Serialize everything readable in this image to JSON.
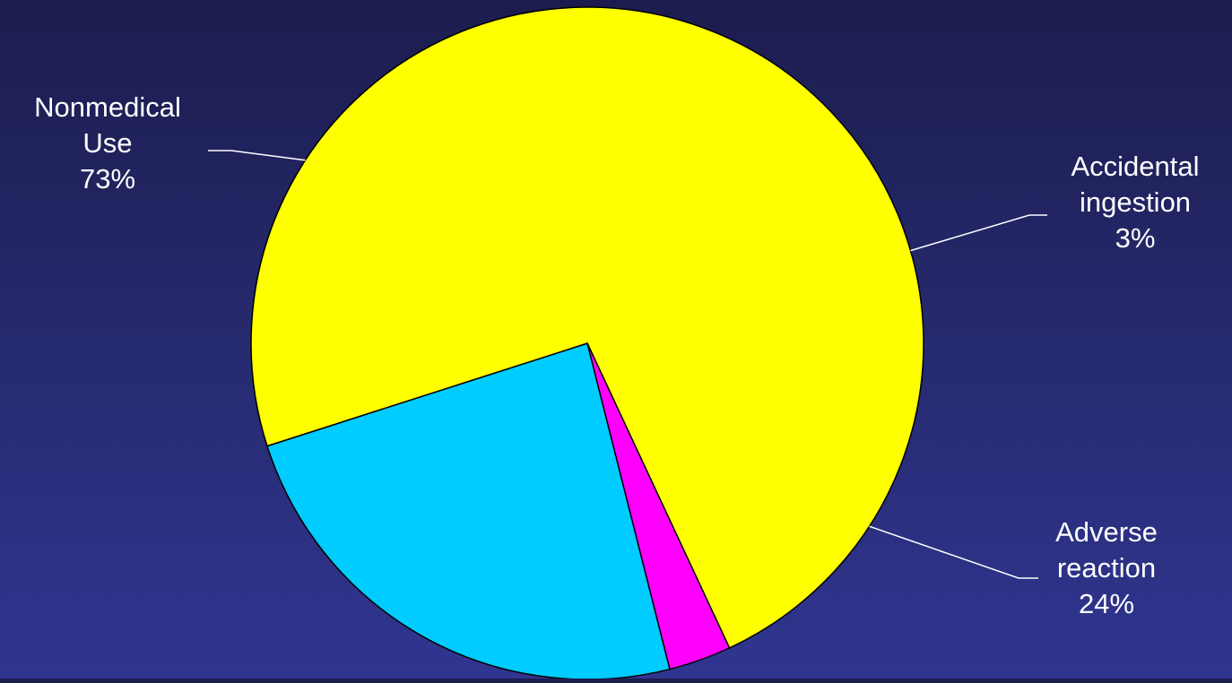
{
  "chart_data": {
    "type": "pie",
    "title": "",
    "slices": [
      {
        "label_lines": [
          "Nonmedical",
          "Use",
          "73%"
        ],
        "category": "Nonmedical Use",
        "value": 73,
        "color": "#ffff00"
      },
      {
        "label_lines": [
          "Accidental",
          "ingestion",
          "3%"
        ],
        "category": "Accidental ingestion",
        "value": 3,
        "color": "#ff00ff"
      },
      {
        "label_lines": [
          "Adverse",
          "reaction",
          "24%"
        ],
        "category": "Adverse reaction",
        "value": 24,
        "color": "#00ccff"
      }
    ],
    "legend": "none",
    "label_placement": "outside-with-leader-lines"
  }
}
